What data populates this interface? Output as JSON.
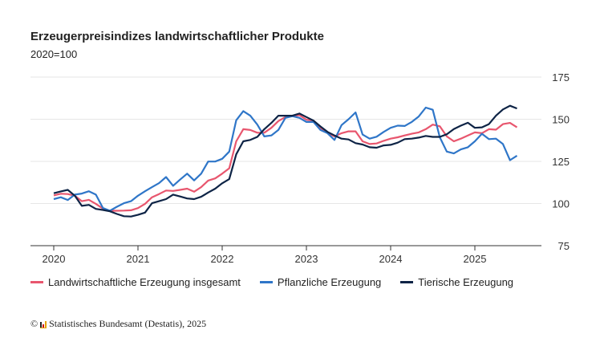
{
  "chart_data": {
    "type": "line",
    "title": "Erzeugerpreisindizes landwirtschaftlicher Produkte",
    "subtitle": "2020=100",
    "x_start": "2020-01",
    "x_end": "2025-07",
    "x_frequency": "monthly",
    "x_tick_labels": [
      "2020",
      "2021",
      "2022",
      "2023",
      "2024",
      "2025"
    ],
    "y_tick_labels": [
      "75",
      "100",
      "125",
      "150",
      "175"
    ],
    "ylim": [
      75,
      175
    ],
    "y_axis_position": "right",
    "grid": true,
    "legend_position": "bottom",
    "series": [
      {
        "name": "Landwirtschaftliche Erzeugung insgesamt",
        "color": "#e8566e",
        "values": [
          104.8,
          105.8,
          105.6,
          104.6,
          101.4,
          102.2,
          99.8,
          97.0,
          95.7,
          95.7,
          95.8,
          96.0,
          97.3,
          99.8,
          103.7,
          105.6,
          107.7,
          107.5,
          108.1,
          108.8,
          107.0,
          109.7,
          113.6,
          114.9,
          117.7,
          120.9,
          136.9,
          144.1,
          143.6,
          142.0,
          142.0,
          144.9,
          148.9,
          151.3,
          152.1,
          152.4,
          149.7,
          149.2,
          144.9,
          142.0,
          139.8,
          141.7,
          142.8,
          142.8,
          136.9,
          135.3,
          135.6,
          137.2,
          138.5,
          139.3,
          140.4,
          141.4,
          142.2,
          144.1,
          146.8,
          145.8,
          139.8,
          136.9,
          138.5,
          140.4,
          142.2,
          141.7,
          144.1,
          143.8,
          147.1,
          147.8,
          145.2
        ]
      },
      {
        "name": "Pflanzliche Erzeugung",
        "color": "#2f76c8",
        "values": [
          102.6,
          103.7,
          102.1,
          105.3,
          105.9,
          107.3,
          105.3,
          97.4,
          95.7,
          98.1,
          100.2,
          101.4,
          104.6,
          107.3,
          109.7,
          112.1,
          115.7,
          110.5,
          114.2,
          117.7,
          113.7,
          117.7,
          124.9,
          124.9,
          126.5,
          130.8,
          149.4,
          154.8,
          152.1,
          146.8,
          139.8,
          140.4,
          143.6,
          150.8,
          151.8,
          150.8,
          148.4,
          148.4,
          143.6,
          141.7,
          137.7,
          146.5,
          150.0,
          154.0,
          140.9,
          138.5,
          139.6,
          142.5,
          144.9,
          146.2,
          146.0,
          148.4,
          151.6,
          156.9,
          155.6,
          139.3,
          130.8,
          129.7,
          132.1,
          133.4,
          136.9,
          141.4,
          138.2,
          138.5,
          135.3,
          125.7,
          128.4
        ]
      },
      {
        "name": "Tierische Erzeugung",
        "color": "#0e2446",
        "values": [
          106.1,
          107.2,
          108.1,
          104.6,
          98.6,
          99.2,
          96.8,
          96.2,
          95.4,
          93.8,
          92.5,
          92.3,
          93.3,
          94.6,
          100.2,
          101.4,
          102.6,
          105.3,
          104.2,
          103.0,
          102.6,
          104.0,
          106.5,
          108.8,
          112.0,
          114.5,
          129.2,
          136.9,
          137.7,
          139.5,
          144.1,
          147.8,
          152.1,
          152.1,
          152.1,
          153.4,
          151.3,
          149.2,
          145.7,
          142.5,
          140.4,
          138.5,
          138.0,
          135.8,
          135.0,
          133.4,
          133.1,
          134.5,
          134.8,
          136.1,
          138.2,
          138.5,
          139.1,
          140.1,
          139.5,
          139.5,
          141.1,
          144.2,
          146.2,
          147.9,
          144.9,
          145.2,
          147.1,
          152.1,
          155.8,
          158.0,
          156.4
        ]
      }
    ]
  },
  "footer": {
    "copyright_symbol": "©",
    "source": "Statistisches Bundesamt (Destatis), 2025"
  }
}
